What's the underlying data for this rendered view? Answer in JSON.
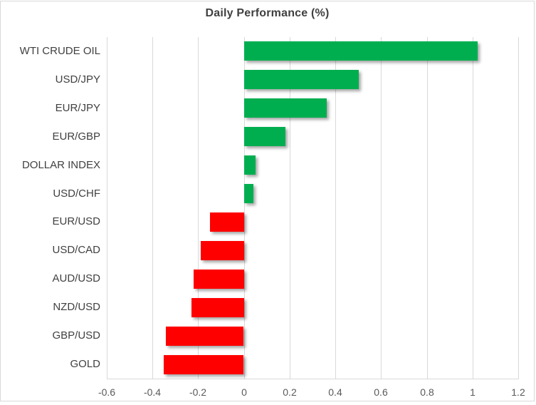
{
  "chart_data": {
    "type": "bar",
    "orientation": "horizontal",
    "title": "Daily Performance (%)",
    "categories": [
      "WTI CRUDE OIL",
      "USD/JPY",
      "EUR/JPY",
      "EUR/GBP",
      "DOLLAR INDEX",
      "USD/CHF",
      "EUR/USD",
      "USD/CAD",
      "AUD/USD",
      "NZD/USD",
      "GBP/USD",
      "GOLD"
    ],
    "values": [
      1.02,
      0.5,
      0.36,
      0.18,
      0.05,
      0.04,
      -0.15,
      -0.19,
      -0.22,
      -0.23,
      -0.34,
      -0.35
    ],
    "xlim": [
      -0.6,
      1.2
    ],
    "x_ticks": [
      -0.6,
      -0.4,
      -0.2,
      0,
      0.2,
      0.4,
      0.6,
      0.8,
      1,
      1.2
    ],
    "x_tick_labels": [
      "-0.6",
      "-0.4",
      "-0.2",
      "0",
      "0.2",
      "0.4",
      "0.6",
      "0.8",
      "1",
      "1.2"
    ],
    "grid": "vertical",
    "legend": "none",
    "positive_color": "#00AE50",
    "negative_color": "#FF0000"
  }
}
